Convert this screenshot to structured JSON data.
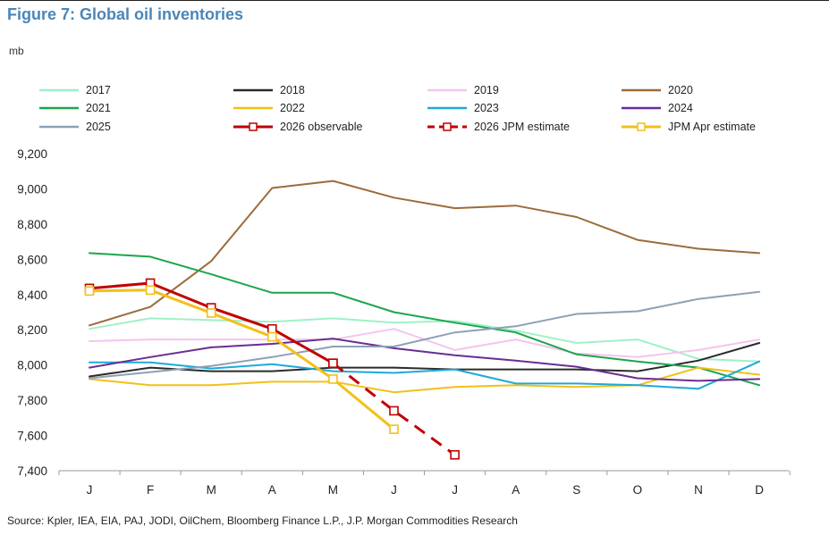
{
  "header": {
    "title": "Figure 7: Global oil inventories",
    "unit": "mb"
  },
  "footer": {
    "source": "Source: Kpler, IEA, EIA, PAJ, JODI, OilChem, Bloomberg Finance L.P., J.P. Morgan Commodities Research"
  },
  "chart_data": {
    "type": "line",
    "title": "Figure 7: Global oil inventories",
    "ylabel": "mb",
    "xlabel": "",
    "categories": [
      "J",
      "F",
      "M",
      "A",
      "M",
      "J",
      "J",
      "A",
      "S",
      "O",
      "N",
      "D"
    ],
    "ylim": [
      7400,
      9200
    ],
    "yticks": [
      7400,
      7600,
      7800,
      8000,
      8200,
      8400,
      8600,
      8800,
      9000,
      9200
    ],
    "ytick_labels": [
      "7,400",
      "7,600",
      "7,800",
      "8,000",
      "8,200",
      "8,400",
      "8,600",
      "8,800",
      "9,000",
      "9,200"
    ],
    "grid": false,
    "legend_position": "top",
    "series": [
      {
        "name": "2017",
        "color": "#9ff0c8",
        "values": [
          8205,
          8265,
          8255,
          8245,
          8265,
          8240,
          8250,
          8195,
          8125,
          8145,
          8035,
          8020
        ]
      },
      {
        "name": "2018",
        "color": "#2b2b2b",
        "values": [
          7935,
          7985,
          7965,
          7965,
          7985,
          7985,
          7975,
          7975,
          7975,
          7965,
          8025,
          8125
        ]
      },
      {
        "name": "2019",
        "color": "#f5c4ee",
        "values": [
          8135,
          8145,
          8145,
          8145,
          8145,
          8205,
          8085,
          8145,
          8065,
          8045,
          8085,
          8145
        ]
      },
      {
        "name": "2020",
        "color": "#9c6b3c",
        "values": [
          8225,
          8330,
          8590,
          9005,
          9045,
          8950,
          8890,
          8905,
          8840,
          8710,
          8660,
          8635
        ]
      },
      {
        "name": "2021",
        "color": "#1aa64a",
        "values": [
          8635,
          8615,
          8515,
          8410,
          8410,
          8300,
          8240,
          8185,
          8060,
          8020,
          7985,
          7885
        ]
      },
      {
        "name": "2022",
        "color": "#f2c018",
        "values": [
          7920,
          7885,
          7885,
          7905,
          7905,
          7845,
          7875,
          7885,
          7875,
          7885,
          7985,
          7945
        ]
      },
      {
        "name": "2023",
        "color": "#1fa9d8",
        "values": [
          8015,
          8015,
          7980,
          8005,
          7965,
          7955,
          7975,
          7895,
          7895,
          7885,
          7865,
          8020
        ]
      },
      {
        "name": "2024",
        "color": "#6a2d91",
        "values": [
          7985,
          8045,
          8100,
          8120,
          8150,
          8095,
          8055,
          8025,
          7990,
          7925,
          7910,
          7920
        ]
      },
      {
        "name": "2025",
        "color": "#8ca1b5",
        "values": [
          7925,
          7960,
          7995,
          8045,
          8105,
          8105,
          8185,
          8220,
          8290,
          8305,
          8375,
          8415
        ]
      },
      {
        "name": "2026 observable",
        "color": "#c00000",
        "style": "solid-markers",
        "values": [
          8435,
          8465,
          8325,
          8205,
          8010,
          null,
          null,
          null,
          null,
          null,
          null,
          null
        ]
      },
      {
        "name": "2026 JPM estimate",
        "color": "#c00000",
        "style": "dashed-markers",
        "values": [
          null,
          null,
          null,
          null,
          8010,
          7740,
          7490,
          null,
          null,
          null,
          null,
          null
        ]
      },
      {
        "name": "JPM Apr estimate",
        "color": "#f2c018",
        "style": "solid-markers",
        "values": [
          8420,
          8425,
          8295,
          8160,
          7920,
          7635,
          null,
          null,
          null,
          null,
          null,
          null
        ]
      }
    ]
  }
}
